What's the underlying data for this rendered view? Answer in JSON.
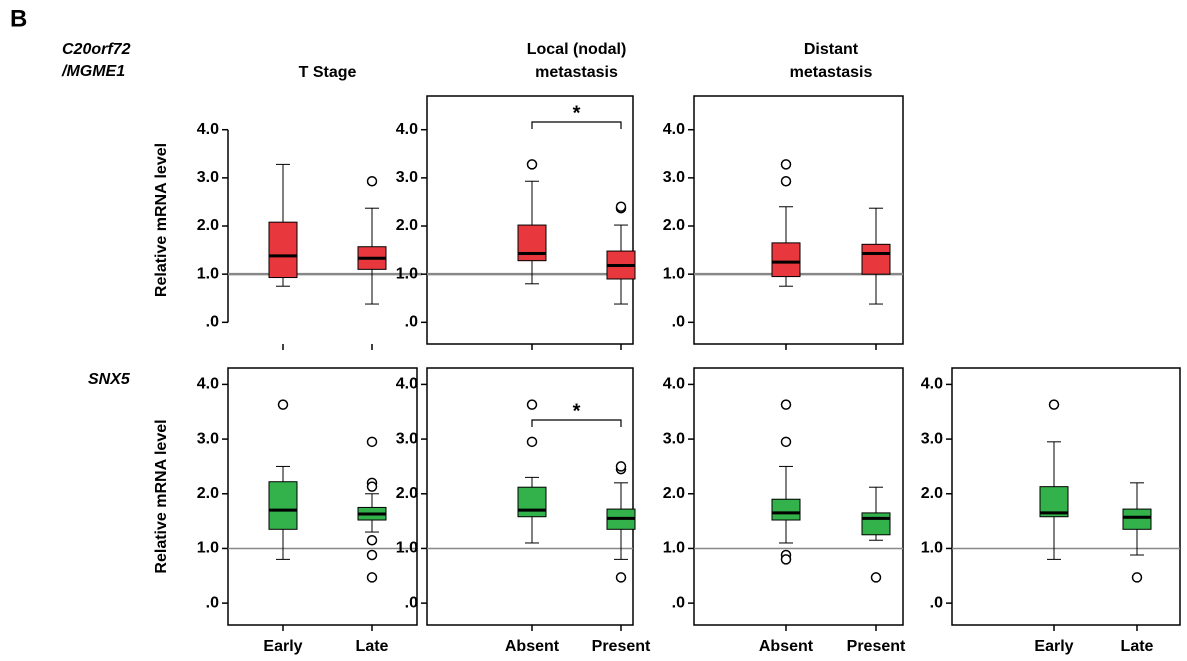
{
  "figure_label": "B",
  "row_labels": [
    [
      "C20orf72",
      "/MGME1"
    ],
    [
      "SNX5"
    ]
  ],
  "chart_data": [
    {
      "type": "box",
      "title": [
        "T Stage"
      ],
      "ylabel": "Relative mRNA level",
      "frame": false,
      "color": "#e8383d",
      "categories": [
        null,
        null
      ],
      "ylim": [
        -0.45,
        4.7
      ],
      "reference_line": 1,
      "yticks": [
        {
          "value": 0,
          "label": ".0"
        },
        {
          "value": 1,
          "label": "1.0"
        },
        {
          "value": 2,
          "label": "2.0"
        },
        {
          "value": 3,
          "label": "3.0"
        },
        {
          "value": 4,
          "label": "4.0"
        }
      ],
      "boxes": [
        {
          "whislo": 0.75,
          "q1": 0.93,
          "med": 1.38,
          "q3": 2.08,
          "whishi": 3.28,
          "fliers": []
        },
        {
          "whislo": 0.38,
          "q1": 1.1,
          "med": 1.33,
          "q3": 1.57,
          "whishi": 2.37,
          "fliers": [
            2.93
          ]
        }
      ]
    },
    {
      "type": "box",
      "title": [
        "Local (nodal)",
        "metastasis"
      ],
      "frame": true,
      "color": "#e8383d",
      "annotation": "*",
      "categories": [
        null,
        null
      ],
      "ylim": [
        -0.45,
        4.7
      ],
      "reference_line": 1,
      "yticks": [
        {
          "value": 0,
          "label": ".0"
        },
        {
          "value": 1,
          "label": "1.0"
        },
        {
          "value": 2,
          "label": "2.0"
        },
        {
          "value": 3,
          "label": "3.0"
        },
        {
          "value": 4,
          "label": "4.0"
        }
      ],
      "boxes": [
        {
          "whislo": 0.8,
          "q1": 1.28,
          "med": 1.43,
          "q3": 2.02,
          "whishi": 2.93,
          "fliers": [
            3.28
          ]
        },
        {
          "whislo": 0.38,
          "q1": 0.9,
          "med": 1.18,
          "q3": 1.48,
          "whishi": 2.02,
          "fliers": [
            2.37,
            2.4
          ]
        }
      ]
    },
    {
      "type": "box",
      "title": [
        "Distant",
        "metastasis"
      ],
      "frame": true,
      "color": "#e8383d",
      "categories": [
        null,
        null
      ],
      "ylim": [
        -0.45,
        4.7
      ],
      "reference_line": 1,
      "yticks": [
        {
          "value": 0,
          "label": ".0"
        },
        {
          "value": 1,
          "label": "1.0"
        },
        {
          "value": 2,
          "label": "2.0"
        },
        {
          "value": 3,
          "label": "3.0"
        },
        {
          "value": 4,
          "label": "4.0"
        }
      ],
      "boxes": [
        {
          "whislo": 0.75,
          "q1": 0.95,
          "med": 1.25,
          "q3": 1.65,
          "whishi": 2.4,
          "fliers": [
            2.93,
            3.28
          ]
        },
        {
          "whislo": 0.38,
          "q1": 1.0,
          "med": 1.43,
          "q3": 1.62,
          "whishi": 2.37,
          "fliers": []
        }
      ]
    },
    {
      "type": "box",
      "ylabel": "Relative mRNA level",
      "frame": true,
      "color": "#33b14a",
      "categories": [
        "Early",
        "Late"
      ],
      "ylim": [
        -0.4,
        4.3
      ],
      "reference_line": 1,
      "yticks": [
        {
          "value": 0,
          "label": ".0"
        },
        {
          "value": 1,
          "label": "1.0"
        },
        {
          "value": 2,
          "label": "2.0"
        },
        {
          "value": 3,
          "label": "3.0"
        },
        {
          "value": 4,
          "label": "4.0"
        }
      ],
      "boxes": [
        {
          "whislo": 0.8,
          "q1": 1.35,
          "med": 1.7,
          "q3": 2.22,
          "whishi": 2.5,
          "fliers": [
            3.63
          ]
        },
        {
          "whislo": 1.3,
          "q1": 1.52,
          "med": 1.63,
          "q3": 1.75,
          "whishi": 2.0,
          "fliers": [
            2.95,
            2.2,
            2.13,
            1.15,
            0.88,
            0.47
          ]
        }
      ]
    },
    {
      "type": "box",
      "frame": true,
      "color": "#33b14a",
      "annotation": "*",
      "categories": [
        "Absent",
        "Present"
      ],
      "ylim": [
        -0.4,
        4.3
      ],
      "reference_line": 1,
      "yticks": [
        {
          "value": 0,
          "label": ".0"
        },
        {
          "value": 1,
          "label": "1.0"
        },
        {
          "value": 2,
          "label": "2.0"
        },
        {
          "value": 3,
          "label": "3.0"
        },
        {
          "value": 4,
          "label": "4.0"
        }
      ],
      "boxes": [
        {
          "whislo": 1.1,
          "q1": 1.58,
          "med": 1.7,
          "q3": 2.12,
          "whishi": 2.3,
          "fliers": [
            2.95,
            3.63
          ]
        },
        {
          "whislo": 0.8,
          "q1": 1.35,
          "med": 1.55,
          "q3": 1.72,
          "whishi": 2.2,
          "fliers": [
            2.45,
            2.5,
            0.47
          ]
        }
      ]
    },
    {
      "type": "box",
      "frame": true,
      "color": "#33b14a",
      "categories": [
        "Absent",
        "Present"
      ],
      "ylim": [
        -0.4,
        4.3
      ],
      "reference_line": 1,
      "yticks": [
        {
          "value": 0,
          "label": ".0"
        },
        {
          "value": 1,
          "label": "1.0"
        },
        {
          "value": 2,
          "label": "2.0"
        },
        {
          "value": 3,
          "label": "3.0"
        },
        {
          "value": 4,
          "label": "4.0"
        }
      ],
      "boxes": [
        {
          "whislo": 1.1,
          "q1": 1.52,
          "med": 1.65,
          "q3": 1.9,
          "whishi": 2.5,
          "fliers": [
            2.95,
            3.63,
            0.88,
            0.8
          ]
        },
        {
          "whislo": 1.15,
          "q1": 1.25,
          "med": 1.55,
          "q3": 1.65,
          "whishi": 2.12,
          "fliers": [
            0.47
          ]
        }
      ]
    },
    {
      "type": "box",
      "frame": true,
      "color": "#33b14a",
      "categories": [
        "Early",
        "Late"
      ],
      "ylim": [
        -0.4,
        4.3
      ],
      "reference_line": 1,
      "yticks": [
        {
          "value": 0,
          "label": ".0"
        },
        {
          "value": 1,
          "label": "1.0"
        },
        {
          "value": 2,
          "label": "2.0"
        },
        {
          "value": 3,
          "label": "3.0"
        },
        {
          "value": 4,
          "label": "4.0"
        }
      ],
      "boxes": [
        {
          "whislo": 0.8,
          "q1": 1.58,
          "med": 1.65,
          "q3": 2.13,
          "whishi": 2.95,
          "fliers": [
            3.63
          ]
        },
        {
          "whislo": 0.88,
          "q1": 1.35,
          "med": 1.57,
          "q3": 1.72,
          "whishi": 2.2,
          "fliers": [
            0.47
          ]
        }
      ]
    }
  ]
}
